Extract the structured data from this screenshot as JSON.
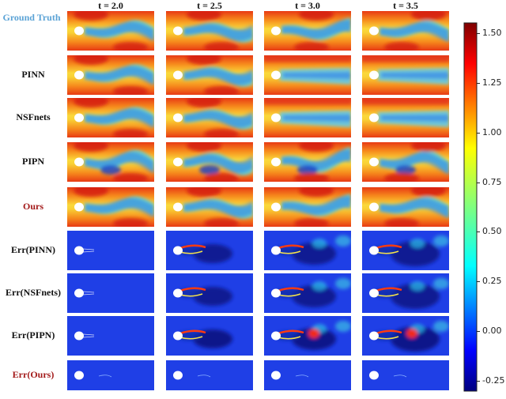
{
  "time_labels": [
    "t = 2.0",
    "t = 2.5",
    "t = 3.0",
    "t = 3.5"
  ],
  "rows": [
    {
      "label": "Ground Truth",
      "kind": "field",
      "method": "gt",
      "color": "#5ba3d6"
    },
    {
      "label": "PINN",
      "kind": "field",
      "method": "pinn",
      "color": "#111111"
    },
    {
      "label": "NSFnets",
      "kind": "field",
      "method": "nsf",
      "color": "#111111"
    },
    {
      "label": "PIPN",
      "kind": "field",
      "method": "pipn",
      "color": "#111111"
    },
    {
      "label": "Ours",
      "kind": "field",
      "method": "ours",
      "color": "#a31a1a"
    },
    {
      "label": "Err(PINN)",
      "kind": "error",
      "method": "pinn",
      "color": "#111111"
    },
    {
      "label": "Err(NSFnets)",
      "kind": "error",
      "method": "nsf",
      "color": "#111111"
    },
    {
      "label": "Err(PIPN)",
      "kind": "error",
      "method": "pipn",
      "color": "#111111"
    },
    {
      "label": "Err(Ours)",
      "kind": "error",
      "method": "ours",
      "color": "#a31a1a"
    }
  ],
  "colorbar": {
    "min": -0.3,
    "max": 1.55,
    "ticks": [
      "1.50",
      "1.25",
      "1.00",
      "0.75",
      "0.50",
      "0.25",
      "0.00",
      "-0.25"
    ],
    "tick_values": [
      1.5,
      1.25,
      1.0,
      0.75,
      0.5,
      0.25,
      0.0,
      -0.25
    ]
  }
}
